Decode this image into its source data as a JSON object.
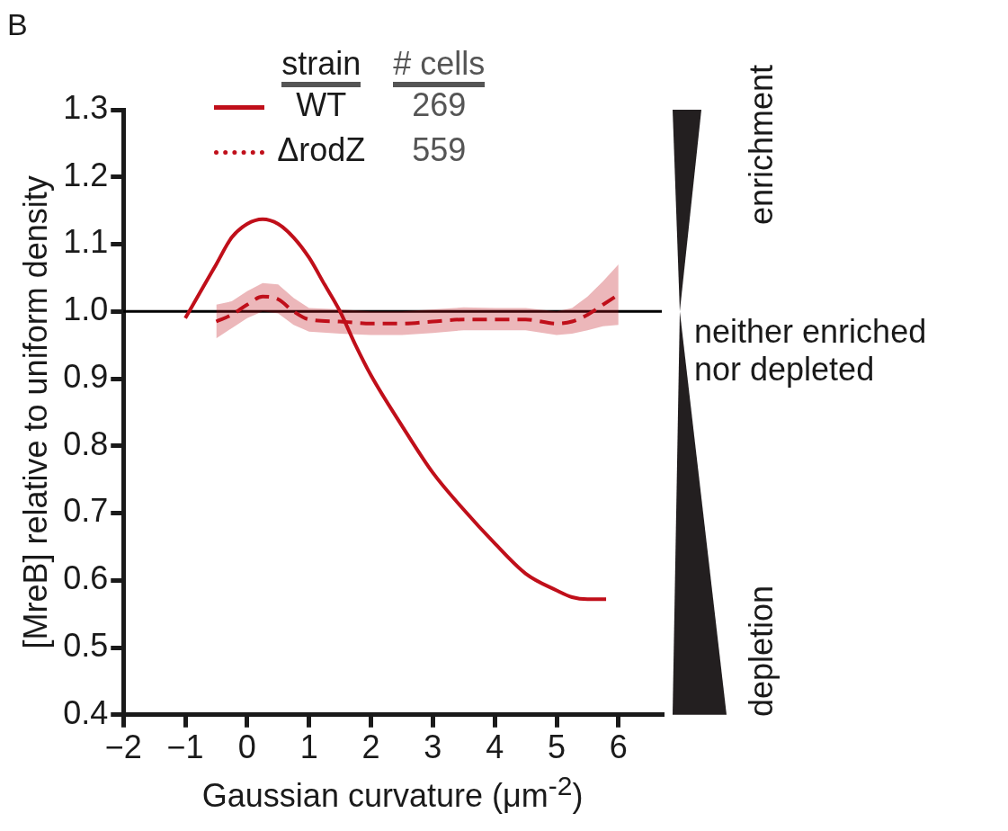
{
  "chart_data": {
    "type": "line",
    "xlabel": "Gaussian curvature (μm$^{-2}$)",
    "ylabel": "[MreB] relative to uniform density",
    "legend_title": "strain",
    "legend": "top",
    "grid": false,
    "xlim": [
      -2,
      6.7
    ],
    "xticks": [
      {
        "value": -2,
        "label": "−2"
      },
      {
        "value": -1,
        "label": "−1"
      },
      0,
      1,
      2,
      3,
      4,
      5,
      6
    ],
    "ylim": [
      0.4,
      1.3
    ],
    "yticks": [
      0.4,
      0.5,
      0.6,
      0.7,
      0.8,
      0.9,
      {
        "value": 1,
        "label": "1.0"
      },
      1.1,
      1.2,
      1.3
    ],
    "ref_lines": [
      {
        "axis": "y",
        "value": 1,
        "color": "#000000"
      }
    ],
    "annotations": [
      "B",
      "enrichment",
      "neither enriched nor depleted",
      "depletion",
      "# cells",
      "269",
      "559"
    ],
    "series": [
      {
        "name": "WT",
        "color": "#c00f1a",
        "line_style": "solid",
        "x": [
          -1,
          -0.75,
          -0.5,
          -0.25,
          0,
          0.25,
          0.5,
          0.75,
          1,
          1.25,
          1.5,
          1.75,
          2,
          2.5,
          3,
          3.5,
          4,
          4.5,
          5,
          5.25,
          5.5,
          5.8
        ],
        "values": [
          0.99,
          1.03,
          1.07,
          1.11,
          1.13,
          1.137,
          1.13,
          1.11,
          1.08,
          1.04,
          1.0,
          0.95,
          0.905,
          0.83,
          0.76,
          0.705,
          0.655,
          0.61,
          0.585,
          0.575,
          0.572,
          0.572
        ]
      },
      {
        "name": "ΔrodZ",
        "color": "#c00f1a",
        "line_style": "dashed",
        "x": [
          -0.5,
          -0.25,
          0,
          0.25,
          0.5,
          0.75,
          1,
          1.5,
          2,
          2.5,
          3,
          3.5,
          4,
          4.5,
          5,
          5.25,
          5.5,
          5.75,
          6
        ],
        "values": [
          0.985,
          0.995,
          1.01,
          1.022,
          1.018,
          1.0,
          0.988,
          0.985,
          0.982,
          0.982,
          0.985,
          0.988,
          0.988,
          0.988,
          0.982,
          0.985,
          0.995,
          1.01,
          1.025
        ],
        "lower": [
          0.96,
          0.975,
          0.99,
          1.0,
          0.997,
          0.98,
          0.97,
          0.967,
          0.965,
          0.965,
          0.968,
          0.972,
          0.972,
          0.972,
          0.965,
          0.967,
          0.972,
          0.978,
          0.98
        ],
        "upper": [
          1.01,
          1.015,
          1.03,
          1.042,
          1.04,
          1.02,
          1.005,
          1.003,
          1.0,
          1.0,
          1.003,
          1.006,
          1.005,
          1.005,
          1.0,
          1.005,
          1.022,
          1.045,
          1.07
        ]
      }
    ]
  }
}
